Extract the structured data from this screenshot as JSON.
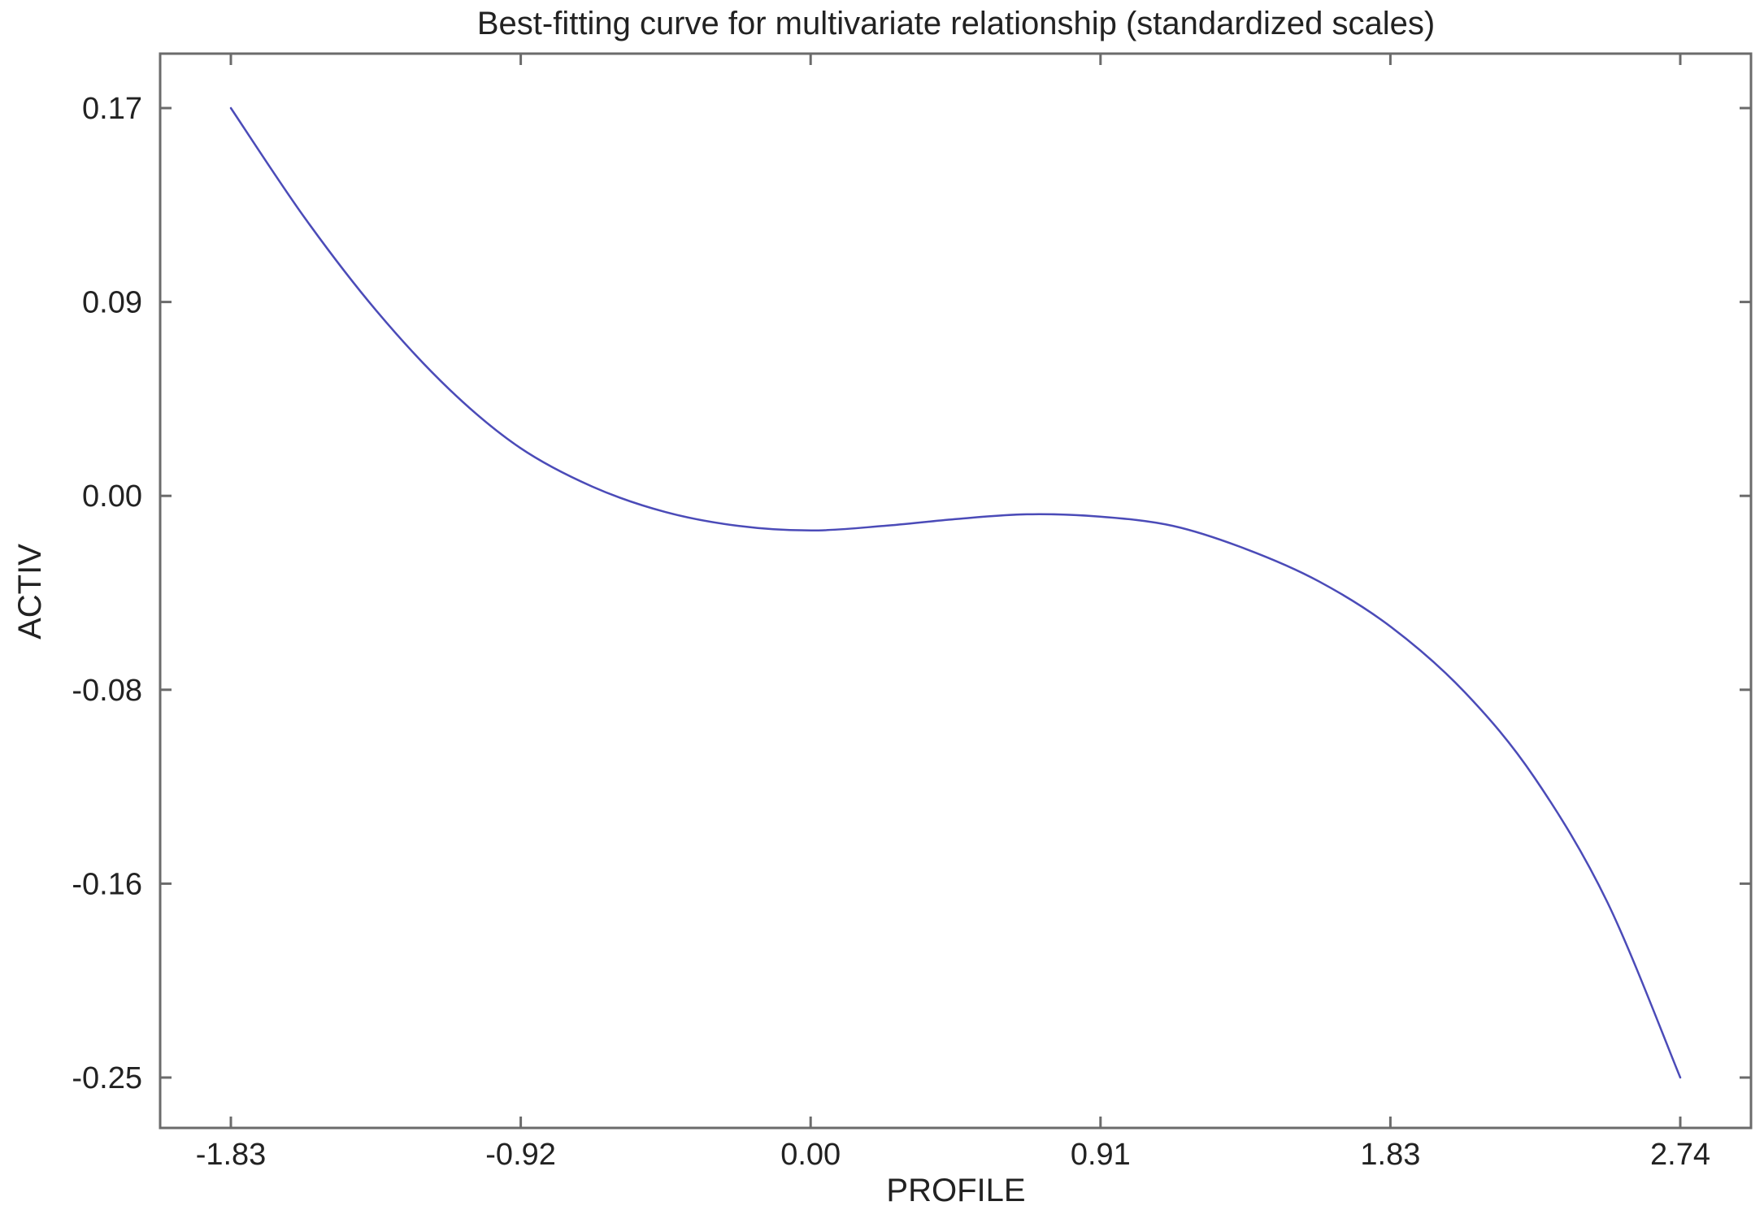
{
  "chart_data": {
    "type": "line",
    "title": "Best-fitting curve for multivariate relationship (standardized scales)",
    "xlabel": "PROFILE",
    "ylabel": "ACTIV",
    "xlim": [
      -1.83,
      2.74
    ],
    "ylim": [
      -0.25,
      0.17
    ],
    "x_ticks": [
      "-1.83",
      "-0.92",
      "0.00",
      "0.91",
      "1.83",
      "2.74"
    ],
    "y_ticks": [
      "0.17",
      "0.09",
      "0.00",
      "-0.08",
      "-0.16",
      "-0.25"
    ],
    "grid": false,
    "series": [
      {
        "color": "#4b4bb8",
        "x": [
          -1.83,
          -1.6,
          -1.37,
          -1.14,
          -0.92,
          -0.69,
          -0.46,
          -0.23,
          0.0,
          0.23,
          0.46,
          0.68,
          0.91,
          1.14,
          1.37,
          1.6,
          1.83,
          2.06,
          2.28,
          2.51,
          2.74
        ],
        "y": [
          0.17,
          0.123,
          0.082,
          0.048,
          0.023,
          0.006,
          -0.005,
          -0.011,
          -0.013,
          -0.011,
          -0.008,
          -0.006,
          -0.007,
          -0.011,
          -0.021,
          -0.035,
          -0.055,
          -0.083,
          -0.12,
          -0.174,
          -0.25
        ]
      }
    ]
  }
}
